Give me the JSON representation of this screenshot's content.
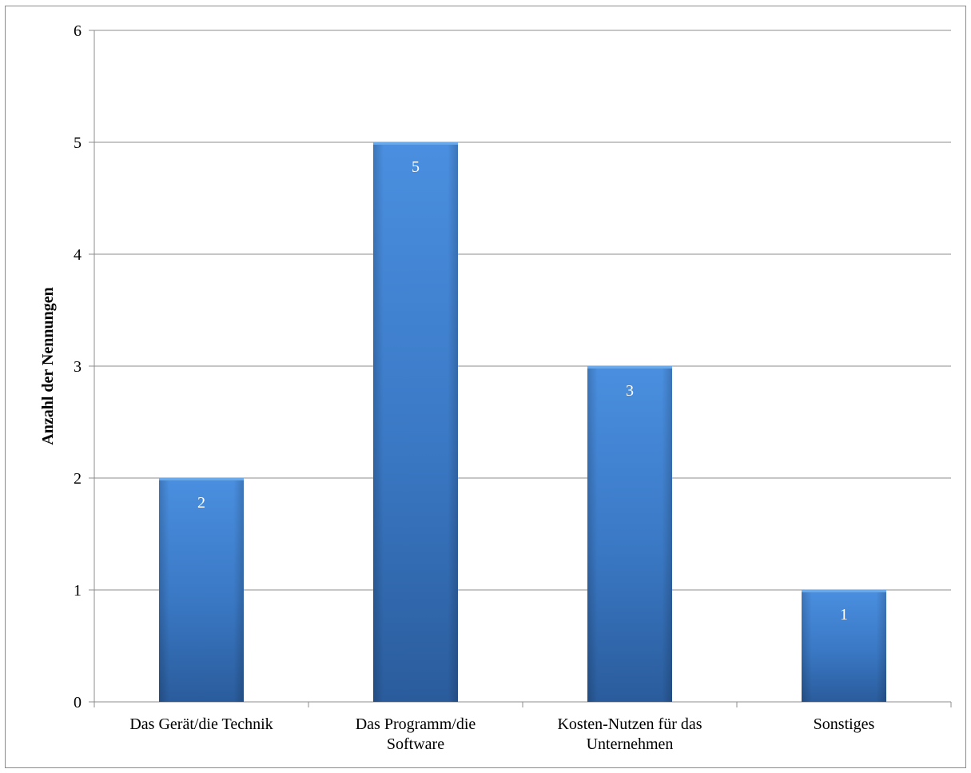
{
  "chart_data": {
    "type": "bar",
    "title": "",
    "xlabel": "",
    "ylabel": "Anzahl der Nennungen",
    "categories": [
      [
        "Das Gerät/die Technik"
      ],
      [
        "Das Programm/die",
        "Software"
      ],
      [
        "Kosten-Nutzen für das",
        "Unternehmen"
      ],
      [
        "Sonstiges"
      ]
    ],
    "values": [
      2,
      5,
      3,
      1
    ],
    "data_labels": [
      "2",
      "5",
      "3",
      "1"
    ],
    "ylim": [
      0,
      6
    ],
    "yticks": [
      0,
      1,
      2,
      3,
      4,
      5,
      6
    ],
    "grid": true,
    "legend": "none",
    "colors": {
      "bar_light": "#4a8fe0",
      "bar_mid": "#3a78c4",
      "bar_dark": "#2a5c9c",
      "grid": "#8c8c8c",
      "axis": "#8c8c8c"
    }
  }
}
